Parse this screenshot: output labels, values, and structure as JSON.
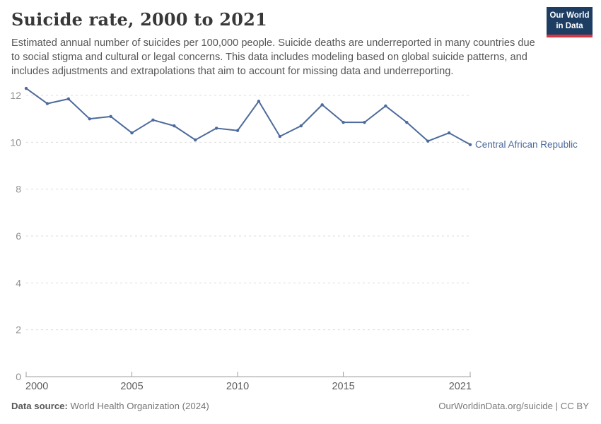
{
  "header": {
    "title": "Suicide rate, 2000 to 2021",
    "subtitle": "Estimated annual number of suicides per 100,000 people. Suicide deaths are underreported in many countries due to social stigma and cultural or legal concerns. This data includes modeling based on global suicide patterns, and includes adjustments and extrapolations that aim to account for missing data and underreporting."
  },
  "logo": {
    "line1": "Our World",
    "line2": "in Data",
    "background": "#1d3d63",
    "accent": "#d8353f"
  },
  "chart_data": {
    "type": "line",
    "title": "Suicide rate, 2000 to 2021",
    "xlabel": "",
    "ylabel": "",
    "x": [
      2000,
      2001,
      2002,
      2003,
      2004,
      2005,
      2006,
      2007,
      2008,
      2009,
      2010,
      2011,
      2012,
      2013,
      2014,
      2015,
      2016,
      2017,
      2018,
      2019,
      2020,
      2021
    ],
    "series": [
      {
        "name": "Central African Republic",
        "color": "#4C6A9C",
        "values": [
          12.3,
          11.65,
          11.85,
          11.0,
          11.1,
          10.4,
          10.95,
          10.7,
          10.1,
          10.6,
          10.5,
          11.75,
          10.25,
          10.7,
          11.6,
          10.85,
          10.85,
          11.55,
          10.85,
          10.05,
          10.4,
          9.9
        ]
      }
    ],
    "ylim": [
      0,
      12.4
    ],
    "yticks": [
      0,
      2,
      4,
      6,
      8,
      10,
      12
    ],
    "xticks": [
      2000,
      2005,
      2010,
      2015,
      2021
    ],
    "grid": true,
    "legend_position": "end-of-line"
  },
  "footer": {
    "source_label": "Data source:",
    "source": " World Health Organization (2024)",
    "credit": "OurWorldinData.org/suicide | CC BY"
  },
  "colors": {
    "line": "#4C6A9C",
    "grid": "#dcdcdc",
    "axis": "#9e9e9e",
    "y_tick_label": "#919191",
    "x_tick_label": "#5e5e5e"
  }
}
